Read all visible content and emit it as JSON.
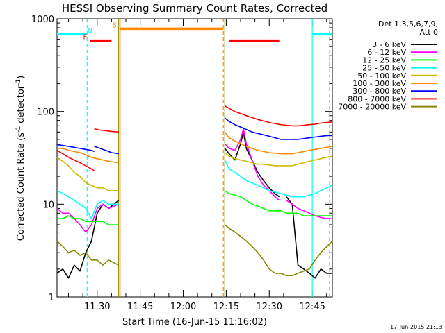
{
  "chart_data": {
    "type": "line",
    "title": "HESSI Observing Summary Count Rates, Corrected",
    "xlabel": "Start Time (16-Jun-15 11:16:02)",
    "ylabel": "Corrected Count Rate (s⁻¹ detector⁻¹)",
    "ylabel_main": "Corrected Count Rate (s",
    "ylabel_exp1": "-1",
    "ylabel_mid": " detector",
    "ylabel_exp2": "-1",
    "ylabel_end": ")",
    "x_range_min": [
      676,
      772
    ],
    "x_ticks": [
      {
        "minute": 690,
        "label": "11:30"
      },
      {
        "minute": 705,
        "label": "11:45"
      },
      {
        "minute": 720,
        "label": "12:00"
      },
      {
        "minute": 735,
        "label": "12:15"
      },
      {
        "minute": 750,
        "label": "12:30"
      },
      {
        "minute": 765,
        "label": "12:45"
      }
    ],
    "yscale": "log",
    "ylim": [
      1,
      1000
    ],
    "y_ticks": [
      {
        "value": 1,
        "label": "1"
      },
      {
        "value": 10,
        "label": "10"
      },
      {
        "value": 100,
        "label": "100"
      },
      {
        "value": 1000,
        "label": "1000"
      }
    ],
    "legend_header": [
      "Det 1,3,5,6,7,9,",
      "Att 0"
    ],
    "legend_position": "right",
    "series": [
      {
        "name": "3 - 6 keV",
        "color": "#000000",
        "segments": [
          {
            "x": [
              676,
              678,
              680,
              682,
              684,
              686,
              688,
              690,
              692,
              694,
              697.5
            ],
            "y": [
              1.8,
              2.0,
              1.6,
              2.2,
              1.9,
              3.0,
              4.0,
              8,
              10,
              9,
              11
            ]
          },
          {
            "x": [
              734.5,
              736,
              738,
              740,
              741,
              742,
              744,
              746,
              748,
              750,
              752,
              753.5
            ],
            "y": [
              40,
              35,
              30,
              45,
              60,
              40,
              30,
              22,
              18,
              15,
              13,
              12
            ]
          },
          {
            "x": [
              756,
              758,
              760,
              762,
              764,
              766,
              768,
              770,
              772
            ],
            "y": [
              12,
              10,
              2.2,
              2.0,
              1.8,
              1.6,
              2.0,
              1.8,
              1.8
            ]
          }
        ]
      },
      {
        "name": "6 - 12 keV",
        "color": "#ff00ff",
        "segments": [
          {
            "x": [
              676,
              678,
              680,
              682,
              684,
              686,
              688,
              690,
              692,
              694,
              697.5
            ],
            "y": [
              9,
              8,
              8,
              7,
              6,
              5,
              6,
              9,
              10,
              9,
              10
            ]
          },
          {
            "x": [
              734.5,
              736,
              738,
              740,
              741,
              742,
              744,
              746,
              748,
              750,
              752,
              753.5
            ],
            "y": [
              45,
              40,
              38,
              50,
              65,
              45,
              30,
              20,
              16,
              14,
              12,
              11
            ]
          },
          {
            "x": [
              756,
              758,
              760,
              762,
              764,
              766,
              768,
              770,
              772
            ],
            "y": [
              11,
              10,
              9,
              8.5,
              8,
              7.5,
              7.2,
              7,
              7
            ]
          }
        ]
      },
      {
        "name": "12 - 25 keV",
        "color": "#00ff00",
        "segments": [
          {
            "x": [
              676,
              678,
              680,
              682,
              684,
              686,
              688,
              690,
              692,
              694,
              697.5
            ],
            "y": [
              7,
              7,
              7.5,
              7,
              7,
              6.5,
              6.5,
              6.5,
              6.5,
              6,
              6
            ]
          },
          {
            "x": [
              734.5,
              736,
              738,
              740,
              742,
              744,
              746,
              748,
              750,
              752,
              754,
              756,
              758,
              760,
              762,
              764,
              766,
              768,
              770,
              772
            ],
            "y": [
              14,
              13,
              12.5,
              12,
              11,
              10,
              9.5,
              9,
              8.5,
              8.5,
              8.5,
              8,
              8,
              8,
              7.5,
              7.5,
              7.5,
              7.5,
              7.5,
              7.5
            ]
          }
        ]
      },
      {
        "name": "25 - 50 keV",
        "color": "#00ffff",
        "segments": [
          {
            "x": [
              676,
              678,
              680,
              682,
              684,
              686,
              688,
              690,
              692,
              694,
              697.5
            ],
            "y": [
              14,
              13,
              12,
              11,
              10,
              9,
              7,
              10,
              11,
              10,
              10
            ]
          },
          {
            "x": [
              734.5,
              736,
              738,
              740,
              742,
              744,
              746,
              748,
              750,
              752,
              754,
              756,
              758,
              760,
              762,
              764,
              766,
              768,
              770,
              772
            ],
            "y": [
              30,
              24,
              22,
              20,
              18,
              17,
              16,
              15,
              14,
              13.5,
              13,
              12.5,
              12,
              12,
              12,
              12.5,
              13,
              14,
              15,
              16
            ]
          }
        ]
      },
      {
        "name": "50 - 100 keV",
        "color": "#ccbb00",
        "segments": [
          {
            "x": [
              676,
              678,
              680,
              682,
              684,
              686,
              688,
              690,
              692,
              694,
              697.5
            ],
            "y": [
              32,
              29,
              26,
              22,
              20,
              17,
              16,
              15,
              15,
              14,
              14
            ]
          },
          {
            "x": [
              734.5,
              736,
              738,
              740,
              742,
              744,
              746,
              748,
              750,
              752,
              754,
              756,
              758,
              760,
              762,
              764,
              766,
              768,
              770,
              772
            ],
            "y": [
              36,
              33,
              31,
              30,
              29,
              28,
              27,
              27,
              26.5,
              26,
              26,
              26,
              26,
              27,
              28,
              29,
              30,
              31,
              32,
              33
            ]
          }
        ]
      },
      {
        "name": "100 - 300 keV",
        "color": "#ff8800",
        "segments": [
          {
            "x": [
              676,
              678,
              680,
              682,
              684,
              686,
              688,
              690,
              692,
              694,
              697.5
            ],
            "y": [
              40,
              40,
              38,
              37,
              36,
              34,
              32,
              31,
              30,
              29,
              28
            ]
          },
          {
            "x": [
              734.5,
              736,
              738,
              740,
              742,
              744,
              746,
              748,
              750,
              752,
              754,
              756,
              758,
              760,
              762,
              764,
              766,
              768,
              770,
              772
            ],
            "y": [
              60,
              52,
              48,
              45,
              42,
              40,
              38,
              37,
              36,
              35.5,
              35,
              35,
              35,
              36,
              37,
              38,
              39,
              40,
              41,
              42
            ]
          }
        ]
      },
      {
        "name": "300 - 800 keV",
        "color": "#0000ff",
        "segments": [
          {
            "x": [
              676,
              678,
              680,
              682,
              684,
              686,
              688,
              689
            ],
            "y": [
              44,
              43,
              42,
              41,
              40,
              39,
              38,
              37
            ]
          },
          {
            "x": [
              689,
              691,
              693,
              695,
              697.5
            ],
            "y": [
              42,
              40,
              38,
              36,
              35
            ]
          },
          {
            "x": [
              734.5,
              736,
              738,
              740,
              742,
              744,
              746,
              748,
              750,
              752,
              754,
              756,
              758,
              760,
              762,
              764,
              766,
              768,
              770,
              772
            ],
            "y": [
              85,
              78,
              72,
              68,
              64,
              60,
              58,
              56,
              54,
              52,
              50,
              50,
              50,
              50,
              51,
              52,
              53,
              54,
              55,
              55
            ]
          }
        ]
      },
      {
        "name": "800 - 7000 keV",
        "color": "#ff0000",
        "segments": [
          {
            "x": [
              676,
              678,
              680,
              682,
              684,
              686,
              688,
              689
            ],
            "y": [
              38,
              35,
              32,
              30,
              28,
              26,
              24,
              23
            ]
          },
          {
            "x": [
              689,
              691,
              693,
              695,
              697.5
            ],
            "y": [
              65,
              63,
              62,
              61,
              60
            ]
          },
          {
            "x": [
              734.5,
              736,
              738,
              740,
              742,
              744,
              746,
              748,
              750,
              752,
              754,
              756,
              758,
              760,
              762,
              764,
              766,
              768,
              770,
              772
            ],
            "y": [
              115,
              108,
              100,
              95,
              90,
              86,
              82,
              79,
              76,
              74,
              72,
              71,
              70,
              70,
              71,
              72,
              73,
              75,
              76,
              77
            ]
          }
        ]
      },
      {
        "name": "7000 - 20000 keV",
        "color": "#888800",
        "segments": [
          {
            "x": [
              676,
              678,
              680,
              682,
              684,
              686,
              688,
              690,
              692,
              694,
              697.5
            ],
            "y": [
              4,
              3.5,
              3,
              3.2,
              2.8,
              3,
              2.5,
              2.5,
              2.2,
              2.5,
              2.2
            ]
          },
          {
            "x": [
              734.5,
              736,
              738,
              740,
              742,
              744,
              746,
              748,
              750,
              752,
              754,
              756,
              758,
              760,
              762,
              764,
              766,
              768,
              770,
              772
            ],
            "y": [
              6,
              5.5,
              5,
              4.5,
              4,
              3.5,
              3,
              2.5,
              2.0,
              1.8,
              1.8,
              1.7,
              1.7,
              1.8,
              1.9,
              2.0,
              2.5,
              3.0,
              3.5,
              4.0
            ]
          }
        ]
      }
    ],
    "flags": [
      {
        "label": "N",
        "color": "#00ffff",
        "x": [
          676,
          686.5
        ],
        "y": 680,
        "label_x": 687.5
      },
      {
        "label": "N",
        "color": "#00ffff",
        "x": [
          765,
          772
        ],
        "y": 680,
        "label_x": null
      },
      {
        "label": "F",
        "color": "#ff0000",
        "x": [
          687.5,
          695
        ],
        "y": 580,
        "label_x": 685.8
      },
      {
        "label": "F",
        "color": "#ff0000",
        "x": [
          736,
          753.5
        ],
        "y": 580,
        "label_x": null
      },
      {
        "label": "S",
        "color": "#ff8800",
        "x": [
          698,
          734
        ],
        "y": 780,
        "label_x": 696
      }
    ],
    "vlines": [
      {
        "x": 698,
        "color": "#ff8800",
        "dashed": false
      },
      {
        "x": 734,
        "color": "#ff8800",
        "dashed": true
      },
      {
        "x": 686.5,
        "color": "#00ffff",
        "dashed": true
      },
      {
        "x": 765,
        "color": "#00ffff",
        "dashed": false
      },
      {
        "x": 771,
        "color": "#00ffff",
        "dashed": true
      },
      {
        "x": 697.5,
        "color": "#888800",
        "dashed": false
      },
      {
        "x": 734.5,
        "color": "#888800",
        "dashed": false
      }
    ]
  },
  "footer": {
    "timestamp": "17-Jun-2015 21:13"
  }
}
